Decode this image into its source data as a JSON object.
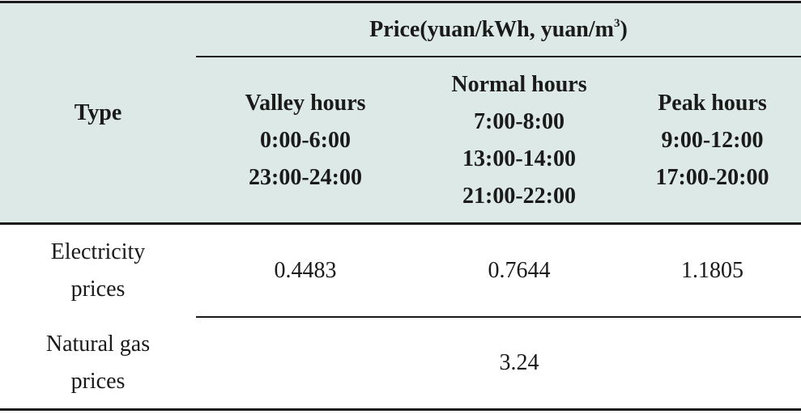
{
  "header": {
    "price": {
      "prefix": "Price(yuan/kWh, yuan/m",
      "superscript": "3",
      "suffix": ")"
    },
    "type": "Type",
    "periods": [
      [
        "Valley hours",
        "0:00-6:00",
        "23:00-24:00"
      ],
      [
        "Normal hours",
        "7:00-8:00",
        "13:00-14:00",
        "21:00-22:00"
      ],
      [
        "Peak hours",
        "9:00-12:00",
        "17:00-20:00"
      ]
    ]
  },
  "rows": [
    {
      "label": [
        "Electricity",
        "prices"
      ],
      "values": [
        0.4483,
        0.7644,
        1.1805
      ]
    },
    {
      "label": [
        "Natural gas",
        "prices"
      ],
      "values": [
        3.24
      ]
    }
  ]
}
